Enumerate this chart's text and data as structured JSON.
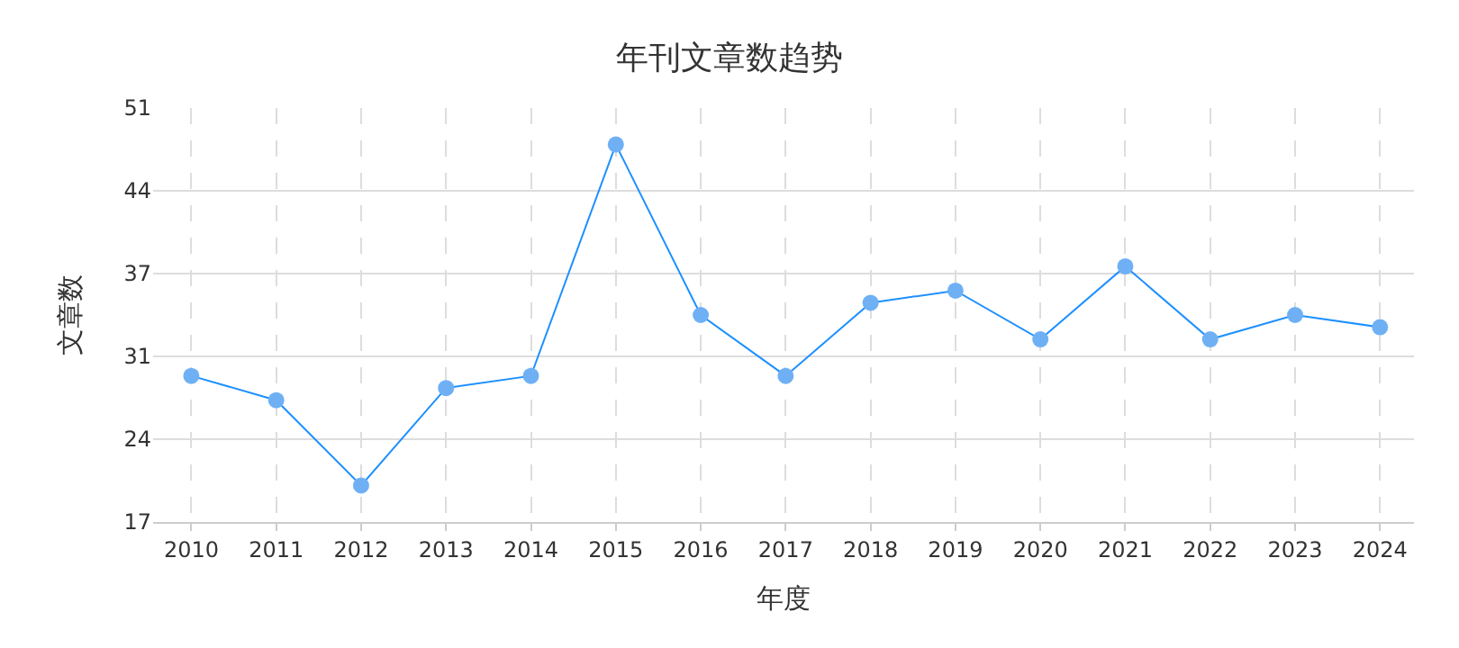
{
  "chart_data": {
    "type": "line",
    "title": "年刊文章数趋势",
    "xlabel": "年度",
    "ylabel": "文章数",
    "categories": [
      "2010",
      "2011",
      "2012",
      "2013",
      "2014",
      "2015",
      "2016",
      "2017",
      "2018",
      "2019",
      "2020",
      "2021",
      "2022",
      "2023",
      "2024"
    ],
    "series": [
      {
        "color": "#1e90ff",
        "values": [
          29,
          27,
          20,
          28,
          29,
          48,
          34,
          29,
          35,
          36,
          32,
          38,
          32,
          34,
          33
        ]
      }
    ],
    "ylim": [
      17,
      51
    ],
    "yticks": [
      17,
      {
        "value": 23.8,
        "label": "24"
      },
      {
        "value": 30.6,
        "label": "31"
      },
      {
        "value": 37.4,
        "label": "37"
      },
      {
        "value": 44.2,
        "label": "44"
      },
      51
    ],
    "grid": true,
    "marker": "circle",
    "line_style": "solid"
  }
}
